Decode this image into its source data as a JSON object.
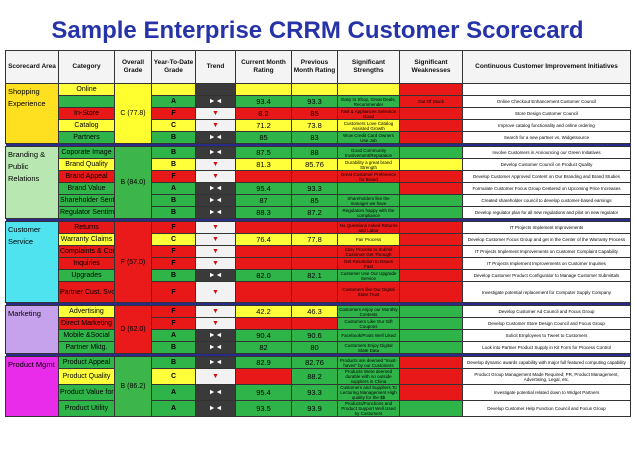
{
  "title": "Sample Enterprise CRRM Customer Scorecard",
  "headers": [
    "Scorecard Area",
    "Category",
    "Overall Grade",
    "Year-To-Date Grade",
    "Trend",
    "Current Month Rating",
    "Previous Month Rating",
    "Significant Strengths",
    "Significant Weaknesses",
    "Continuous Customer Improvement Initiatives"
  ],
  "colors": {
    "green": "#2fb44a",
    "yellow": "#ffff3a",
    "red": "#e81818",
    "title": "#2633a8"
  },
  "areas": [
    {
      "name": "Shopping Experience",
      "overall": "C (77.8)",
      "rows": [
        {
          "category": "Online",
          "ytd": "",
          "trend": "",
          "current": "",
          "previous": "",
          "strength": "",
          "weakness": "",
          "initiative": ""
        },
        {
          "category": "",
          "ytd": "A",
          "trend": "►◄",
          "current": "93.4",
          "previous": "93.3",
          "strength": "Easy to Shop, Great Deals, Recommender",
          "weakness": "Out Of Stock",
          "initiative": "Online Checkout Enhancement Customer Council"
        },
        {
          "category": "In-Store",
          "ytd": "F",
          "trend": "▼",
          "current": "8.2",
          "previous": "85",
          "strength": "Fast & Appliances Selection Good",
          "weakness": "",
          "initiative": "Store Design Customer Council"
        },
        {
          "category": "Catalog",
          "ytd": "C",
          "trend": "▼",
          "current": "71.2",
          "previous": "73.8",
          "strength": "Customers Love Catalog Assisted Growth",
          "weakness": "",
          "initiative": "Improve catalog functionality and online ordering"
        },
        {
          "category": "Partners",
          "ytd": "B",
          "trend": "►◄",
          "current": "85",
          "previous": "83",
          "strength": "Wow Credit Card Owners Use Job",
          "weakness": "",
          "initiative": "Search for a new partner vs. Widgetsource"
        }
      ]
    },
    {
      "name": "Branding & Public Relations",
      "overall": "B (84.0)",
      "rows": [
        {
          "category": "Coporate Image",
          "ytd": "B",
          "trend": "►◄",
          "current": "87.5",
          "previous": "88",
          "strength": "Good Community Involvement/Reputation",
          "weakness": "",
          "initiative": "Involve Customers in Announcing our Green Initiatives"
        },
        {
          "category": "Brand Quality",
          "ytd": "B",
          "trend": "▼",
          "current": "81.3",
          "previous": "85.76",
          "strength": "Durability a great brand Strength",
          "weakness": "",
          "initiative": "Develop Customer Council on Product Quality"
        },
        {
          "category": "Brand Appeal",
          "ytd": "F",
          "trend": "▼",
          "current": "",
          "previous": "",
          "strength": "Great Customer Preference for Brand",
          "weakness": "",
          "initiative": "Develop Customer Approved Content on Our Branding and Brand Studies"
        },
        {
          "category": "Brand Value",
          "ytd": "A",
          "trend": "►◄",
          "current": "95.4",
          "previous": "93.3",
          "strength": "",
          "weakness": "",
          "initiative": "Formulate Customer Focus Group Centered on Upcoming Price Increases"
        },
        {
          "category": "Shareholder Sentiment",
          "ytd": "B",
          "trend": "►◄",
          "current": "87",
          "previous": "85",
          "strength": "Shareholders like the manager we have",
          "weakness": "",
          "initiative": "Created shareholder council to develop customer-based earnings"
        },
        {
          "category": "Regulator Sentiment",
          "ytd": "B",
          "trend": "►◄",
          "current": "88.3",
          "previous": "87.2",
          "strength": "Regulators happy with the compliance",
          "weakness": "",
          "initiative": "Develop regulator plan for all new regulations and pilot on new regulator"
        }
      ]
    },
    {
      "name": "Customer Service",
      "overall": "F (57.0)",
      "rows": [
        {
          "category": "Returns",
          "ytd": "F",
          "trend": "▼",
          "current": "",
          "previous": "",
          "strength": "No Questions Asked Returns and Labor",
          "weakness": "",
          "initiative": "IT Projects Implement Improvements"
        },
        {
          "category": "Warranty Claims",
          "ytd": "C",
          "trend": "▼",
          "current": "76.4",
          "previous": "77.8",
          "strength": "Fair Process",
          "weakness": "",
          "initiative": "Develop Customer Focus Group and get in the Center of the Warranty Process"
        },
        {
          "category": "Complaints & Concerns",
          "ytd": "F",
          "trend": "▼",
          "current": "",
          "previous": "",
          "strength": "Easy Process to Submit Customer Get Through",
          "weakness": "",
          "initiative": "IT Projects Implement Improvements on Customer Complaint Capability"
        },
        {
          "category": "Inquiries",
          "ytd": "F",
          "trend": "▼",
          "current": "",
          "previous": "",
          "strength": "Get Resolution to Issues Fast",
          "weakness": "",
          "initiative": "IT Projects Implement Improvements on Customer Inquiries"
        },
        {
          "category": "Upgrades",
          "ytd": "B",
          "trend": "►◄",
          "current": "82.0",
          "previous": "82.1",
          "strength": "Customer Use Our Upgrade Service",
          "weakness": "",
          "initiative": "Develop Customer Product Configurator to Manage Customer Submittals"
        },
        {
          "category": "Partner Cust. Svc.",
          "ytd": "F",
          "trend": "▼",
          "current": "",
          "previous": "",
          "strength": "Customers like Our Digital State Trust",
          "weakness": "",
          "initiative": "Investigate potential replacement for Computer Supply Company"
        }
      ]
    },
    {
      "name": "Marketing",
      "overall": "D (62.0)",
      "rows": [
        {
          "category": "Advertising",
          "ytd": "F",
          "trend": "▼",
          "current": "42.2",
          "previous": "46.3",
          "strength": "Customers enjoy our Monthly Contests",
          "weakness": "",
          "initiative": "Develop Customer Ad Council and Focus Group"
        },
        {
          "category": "Direct Marketing",
          "ytd": "F",
          "trend": "▼",
          "current": "",
          "previous": "",
          "strength": "Customers Like Our Gift Coupons",
          "weakness": "",
          "initiative": "Develop Customer Store Design Council and Focus Group"
        },
        {
          "category": "Mobile &Social",
          "ytd": "A",
          "trend": "►◄",
          "current": "90.4",
          "previous": "90.6",
          "strength": "Facebook/Posts Well Liked",
          "weakness": "",
          "initiative": "Solicit Employees to Tweet to Customers"
        },
        {
          "category": "Partner Mktg.",
          "ytd": "B",
          "trend": "►◄",
          "current": "82",
          "previous": "80",
          "strength": "Customers Enjoy Digital State Data",
          "weakness": "",
          "initiative": "Look into Partner Product Supply in Kit Form for Process Control"
        }
      ]
    },
    {
      "name": "Product Mgmt",
      "overall": "B (86.2)",
      "rows": [
        {
          "category": "Product Appeal",
          "ytd": "B",
          "trend": "►◄",
          "current": "82.9",
          "previous": "82.76",
          "strength": "Products are deemed \"must-haves\" by our Customers",
          "weakness": "",
          "initiative": "Develop dynamic awards capability with major full featured computing capability"
        },
        {
          "category": "Product Quality",
          "ytd": "C",
          "trend": "▼",
          "current": "",
          "previous": "88.2",
          "strength": "Products Were deemed durable with no outside suppliers in China",
          "weakness": "",
          "initiative": "Product Group Management Made Required; PR, Product Management, Advertising, Legal, etc."
        },
        {
          "category": "Product Value for $",
          "ytd": "A",
          "trend": "►◄",
          "current": "95.4",
          "previous": "93.3",
          "strength": "Customers and Suppliers To Lecturing Management High quality for the $$",
          "weakness": "",
          "initiative": "Investigate potential related down to Widget Partners"
        },
        {
          "category": "Product Utility",
          "ytd": "A",
          "trend": "►◄",
          "current": "93.5",
          "previous": "93.9",
          "strength": "Products/Functions and Product Support Well Used by Customers",
          "weakness": "",
          "initiative": "Develop Customer Help Function Council and Focus Group"
        }
      ]
    }
  ]
}
